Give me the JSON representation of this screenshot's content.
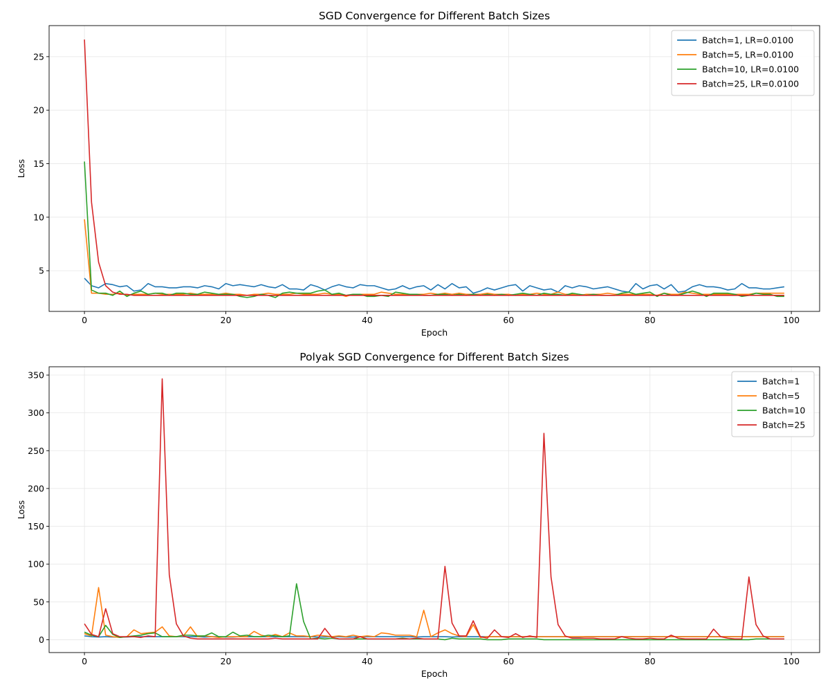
{
  "chart_data": [
    {
      "type": "line",
      "title": "SGD Convergence for Different Batch Sizes",
      "xlabel": "Epoch",
      "ylabel": "Loss",
      "xlim": [
        -5,
        104
      ],
      "ylim": [
        1.2,
        27.9
      ],
      "xticks": [
        0,
        20,
        40,
        60,
        80,
        100
      ],
      "yticks": [
        5,
        10,
        15,
        20,
        25
      ],
      "grid": true,
      "legend_position": "top-right",
      "x": [
        0,
        1,
        2,
        3,
        4,
        5,
        6,
        7,
        8,
        9,
        10,
        11,
        12,
        13,
        14,
        15,
        16,
        17,
        18,
        19,
        20,
        21,
        22,
        23,
        24,
        25,
        26,
        27,
        28,
        29,
        30,
        31,
        32,
        33,
        34,
        35,
        36,
        37,
        38,
        39,
        40,
        41,
        42,
        43,
        44,
        45,
        46,
        47,
        48,
        49,
        50,
        51,
        52,
        53,
        54,
        55,
        56,
        57,
        58,
        59,
        60,
        61,
        62,
        63,
        64,
        65,
        66,
        67,
        68,
        69,
        70,
        71,
        72,
        73,
        74,
        75,
        76,
        77,
        78,
        79,
        80,
        81,
        82,
        83,
        84,
        85,
        86,
        87,
        88,
        89,
        90,
        91,
        92,
        93,
        94,
        95,
        96,
        97,
        98,
        99
      ],
      "series": [
        {
          "name": "Batch=1, LR=0.0100",
          "color": "#1f77b4",
          "values": [
            4.3,
            3.6,
            3.4,
            3.8,
            3.7,
            3.5,
            3.6,
            3.1,
            3.2,
            3.8,
            3.5,
            3.5,
            3.4,
            3.4,
            3.5,
            3.5,
            3.4,
            3.6,
            3.5,
            3.3,
            3.8,
            3.6,
            3.7,
            3.6,
            3.5,
            3.7,
            3.5,
            3.4,
            3.7,
            3.3,
            3.3,
            3.2,
            3.7,
            3.5,
            3.2,
            3.5,
            3.7,
            3.5,
            3.4,
            3.7,
            3.6,
            3.6,
            3.4,
            3.2,
            3.3,
            3.6,
            3.3,
            3.5,
            3.6,
            3.2,
            3.7,
            3.3,
            3.8,
            3.4,
            3.5,
            2.9,
            3.1,
            3.4,
            3.2,
            3.4,
            3.6,
            3.7,
            3.1,
            3.6,
            3.4,
            3.2,
            3.3,
            3.0,
            3.6,
            3.4,
            3.6,
            3.5,
            3.3,
            3.4,
            3.5,
            3.3,
            3.1,
            3.0,
            3.8,
            3.3,
            3.6,
            3.7,
            3.3,
            3.7,
            3.0,
            3.1,
            3.5,
            3.7,
            3.5,
            3.5,
            3.4,
            3.2,
            3.3,
            3.8,
            3.4,
            3.4,
            3.3,
            3.3,
            3.4,
            3.5
          ]
        },
        {
          "name": "Batch=5, LR=0.0100",
          "color": "#ff7f0e",
          "values": [
            9.8,
            2.9,
            2.9,
            2.8,
            2.8,
            2.9,
            2.7,
            2.8,
            2.8,
            2.8,
            2.9,
            2.8,
            2.8,
            2.8,
            2.8,
            2.9,
            2.8,
            2.8,
            2.8,
            2.8,
            2.9,
            2.8,
            2.8,
            2.7,
            2.8,
            2.8,
            2.9,
            2.8,
            2.8,
            2.8,
            2.9,
            2.8,
            2.8,
            2.8,
            2.9,
            2.8,
            2.8,
            2.6,
            2.8,
            2.8,
            2.8,
            2.8,
            3.0,
            2.9,
            2.8,
            2.8,
            2.8,
            2.8,
            2.8,
            2.9,
            2.8,
            2.9,
            2.8,
            2.9,
            2.8,
            2.8,
            2.8,
            2.9,
            2.8,
            2.8,
            2.8,
            2.7,
            2.8,
            2.8,
            2.9,
            2.8,
            2.8,
            3.0,
            2.8,
            2.8,
            2.7,
            2.8,
            2.8,
            2.8,
            2.9,
            2.8,
            2.8,
            2.8,
            2.8,
            2.8,
            2.8,
            2.7,
            2.9,
            2.8,
            2.8,
            3.0,
            2.9,
            2.8,
            2.8,
            2.8,
            2.8,
            2.8,
            2.8,
            2.8,
            2.8,
            2.9,
            2.9,
            2.9,
            2.9,
            2.9
          ]
        },
        {
          "name": "Batch=10, LR=0.0100",
          "color": "#2ca02c",
          "values": [
            15.2,
            3.2,
            2.9,
            2.9,
            2.7,
            3.1,
            2.6,
            2.9,
            3.1,
            2.8,
            2.9,
            2.9,
            2.7,
            2.9,
            2.9,
            2.8,
            2.8,
            3.0,
            2.9,
            2.8,
            2.8,
            2.8,
            2.6,
            2.5,
            2.6,
            2.8,
            2.7,
            2.5,
            2.9,
            3.0,
            2.9,
            2.9,
            2.9,
            3.1,
            3.2,
            2.8,
            2.9,
            2.7,
            2.8,
            2.8,
            2.6,
            2.6,
            2.7,
            2.6,
            3.0,
            2.9,
            2.8,
            2.8,
            2.7,
            2.7,
            2.8,
            2.8,
            2.7,
            2.8,
            2.7,
            2.8,
            2.7,
            2.8,
            2.7,
            2.8,
            2.7,
            2.8,
            2.9,
            2.8,
            2.7,
            2.9,
            2.8,
            2.8,
            2.7,
            2.9,
            2.8,
            2.7,
            2.8,
            2.7,
            2.7,
            2.7,
            2.9,
            3.0,
            2.8,
            2.9,
            3.0,
            2.6,
            2.9,
            2.7,
            2.7,
            2.9,
            3.1,
            2.9,
            2.6,
            2.9,
            2.9,
            2.9,
            2.8,
            2.6,
            2.7,
            2.9,
            2.8,
            2.8,
            2.6,
            2.6
          ]
        },
        {
          "name": "Batch=25, LR=0.0100",
          "color": "#d62728",
          "values": [
            26.6,
            11.4,
            5.8,
            3.6,
            3.0,
            2.8,
            2.8,
            2.7,
            2.7,
            2.7,
            2.7,
            2.7,
            2.7,
            2.7,
            2.7,
            2.7,
            2.7,
            2.7,
            2.7,
            2.7,
            2.7,
            2.7,
            2.7,
            2.7,
            2.7,
            2.7,
            2.7,
            2.7,
            2.7,
            2.7,
            2.7,
            2.7,
            2.7,
            2.7,
            2.7,
            2.7,
            2.7,
            2.7,
            2.7,
            2.7,
            2.7,
            2.7,
            2.7,
            2.7,
            2.7,
            2.7,
            2.7,
            2.7,
            2.7,
            2.7,
            2.7,
            2.7,
            2.7,
            2.7,
            2.7,
            2.7,
            2.7,
            2.7,
            2.7,
            2.7,
            2.7,
            2.7,
            2.7,
            2.7,
            2.7,
            2.7,
            2.7,
            2.7,
            2.7,
            2.7,
            2.7,
            2.7,
            2.7,
            2.7,
            2.7,
            2.7,
            2.7,
            2.7,
            2.7,
            2.7,
            2.7,
            2.7,
            2.7,
            2.7,
            2.7,
            2.7,
            2.7,
            2.7,
            2.7,
            2.7,
            2.7,
            2.7,
            2.7,
            2.7,
            2.7,
            2.7,
            2.7,
            2.7,
            2.7,
            2.7
          ]
        }
      ]
    },
    {
      "type": "line",
      "title": "Polyak SGD Convergence for Different Batch Sizes",
      "xlabel": "Epoch",
      "ylabel": "Loss",
      "xlim": [
        -5,
        104
      ],
      "ylim": [
        -17,
        361
      ],
      "xticks": [
        0,
        20,
        40,
        60,
        80,
        100
      ],
      "yticks": [
        0,
        50,
        100,
        150,
        200,
        250,
        300,
        350
      ],
      "grid": true,
      "legend_position": "top-right",
      "x": [
        0,
        1,
        2,
        3,
        4,
        5,
        6,
        7,
        8,
        9,
        10,
        11,
        12,
        13,
        14,
        15,
        16,
        17,
        18,
        19,
        20,
        21,
        22,
        23,
        24,
        25,
        26,
        27,
        28,
        29,
        30,
        31,
        32,
        33,
        34,
        35,
        36,
        37,
        38,
        39,
        40,
        41,
        42,
        43,
        44,
        45,
        46,
        47,
        48,
        49,
        50,
        51,
        52,
        53,
        54,
        55,
        56,
        57,
        58,
        59,
        60,
        61,
        62,
        63,
        64,
        65,
        66,
        67,
        68,
        69,
        70,
        71,
        72,
        73,
        74,
        75,
        76,
        77,
        78,
        79,
        80,
        81,
        82,
        83,
        84,
        85,
        86,
        87,
        88,
        89,
        90,
        91,
        92,
        93,
        94,
        95,
        96,
        97,
        98,
        99
      ],
      "series": [
        {
          "name": "Batch=1",
          "color": "#1f77b4",
          "values": [
            5,
            4,
            3.5,
            4,
            3.5,
            3.5,
            3.5,
            4,
            4,
            4,
            4,
            4,
            4,
            4,
            4,
            4,
            4,
            3.5,
            4,
            4,
            3.5,
            3.5,
            4,
            4,
            4,
            4,
            4,
            4,
            4,
            4,
            4,
            4,
            4,
            3.5,
            3.5,
            4,
            4,
            3.5,
            3.5,
            4,
            4,
            4,
            4,
            4,
            4,
            4,
            4,
            3.5,
            4,
            4,
            4,
            4,
            3.5,
            4,
            4,
            4,
            4,
            4,
            4,
            4,
            4,
            4,
            4,
            4,
            4,
            4,
            4,
            4,
            4,
            3.5,
            3.5,
            4,
            4,
            4,
            4,
            4,
            4,
            4,
            4,
            4,
            4,
            4,
            4,
            4,
            4,
            4,
            4,
            4,
            4,
            4,
            4,
            4,
            4,
            4,
            4,
            4,
            4,
            4,
            4,
            4
          ]
        },
        {
          "name": "Batch=5",
          "color": "#ff7f0e",
          "values": [
            8,
            5,
            69,
            6,
            4,
            3,
            4,
            13,
            8,
            9,
            10,
            17,
            5,
            4,
            5,
            17,
            4,
            5,
            4,
            3,
            4,
            4,
            4,
            4,
            11,
            6,
            4,
            7,
            4,
            9,
            5,
            5,
            4,
            6,
            5,
            4,
            5,
            4,
            6,
            4,
            5,
            4,
            9,
            8,
            6,
            6,
            6,
            4,
            39,
            4,
            9,
            13,
            8,
            5,
            4,
            20,
            3,
            4,
            4,
            4,
            4,
            4,
            4,
            4,
            4,
            4,
            4,
            4,
            4,
            4,
            4,
            4,
            4,
            4,
            4,
            4,
            4,
            4,
            4,
            4,
            4,
            4,
            4,
            4,
            4,
            4,
            4,
            4,
            4,
            4,
            4,
            4,
            4,
            4,
            4,
            4,
            4,
            4,
            4,
            4
          ]
        },
        {
          "name": "Batch=10",
          "color": "#2ca02c",
          "values": [
            10,
            6,
            4,
            19,
            7,
            3,
            4,
            5,
            6,
            8,
            9,
            4,
            4,
            4,
            6,
            6,
            5,
            5,
            9,
            4,
            4,
            10,
            5,
            6,
            4,
            4,
            6,
            5,
            4,
            5,
            74,
            24,
            1,
            2,
            1,
            2,
            1,
            1,
            1,
            1,
            1,
            1,
            1,
            1,
            1,
            2,
            1,
            1,
            1,
            1,
            1,
            0,
            2,
            1,
            1,
            1,
            1,
            0,
            0,
            0,
            1,
            1,
            1,
            1,
            1,
            0,
            0,
            0,
            0,
            0,
            0,
            0,
            0,
            0,
            0,
            0,
            0,
            0,
            0,
            0,
            0,
            0,
            0,
            0,
            0,
            0,
            0,
            0,
            0,
            0,
            0,
            0,
            0,
            0,
            0,
            1,
            1,
            1,
            1,
            1
          ]
        },
        {
          "name": "Batch=25",
          "color": "#d62728",
          "values": [
            21,
            7,
            4,
            41,
            8,
            4,
            4,
            4,
            3,
            5,
            4,
            345,
            86,
            21,
            5,
            2,
            1,
            1,
            1,
            1,
            1,
            1,
            1,
            1,
            1,
            1,
            1,
            2,
            1,
            1,
            1,
            1,
            1,
            1,
            15,
            3,
            1,
            1,
            1,
            4,
            1,
            1,
            1,
            1,
            1,
            1,
            1,
            2,
            1,
            1,
            1,
            97,
            22,
            5,
            5,
            25,
            4,
            2,
            13,
            4,
            3,
            8,
            3,
            5,
            3,
            273,
            83,
            20,
            5,
            2,
            2,
            2,
            2,
            1,
            1,
            1,
            4,
            2,
            1,
            1,
            2,
            1,
            1,
            6,
            2,
            1,
            1,
            1,
            1,
            14,
            4,
            2,
            1,
            1,
            83,
            20,
            5,
            1,
            1,
            1
          ]
        }
      ]
    }
  ]
}
